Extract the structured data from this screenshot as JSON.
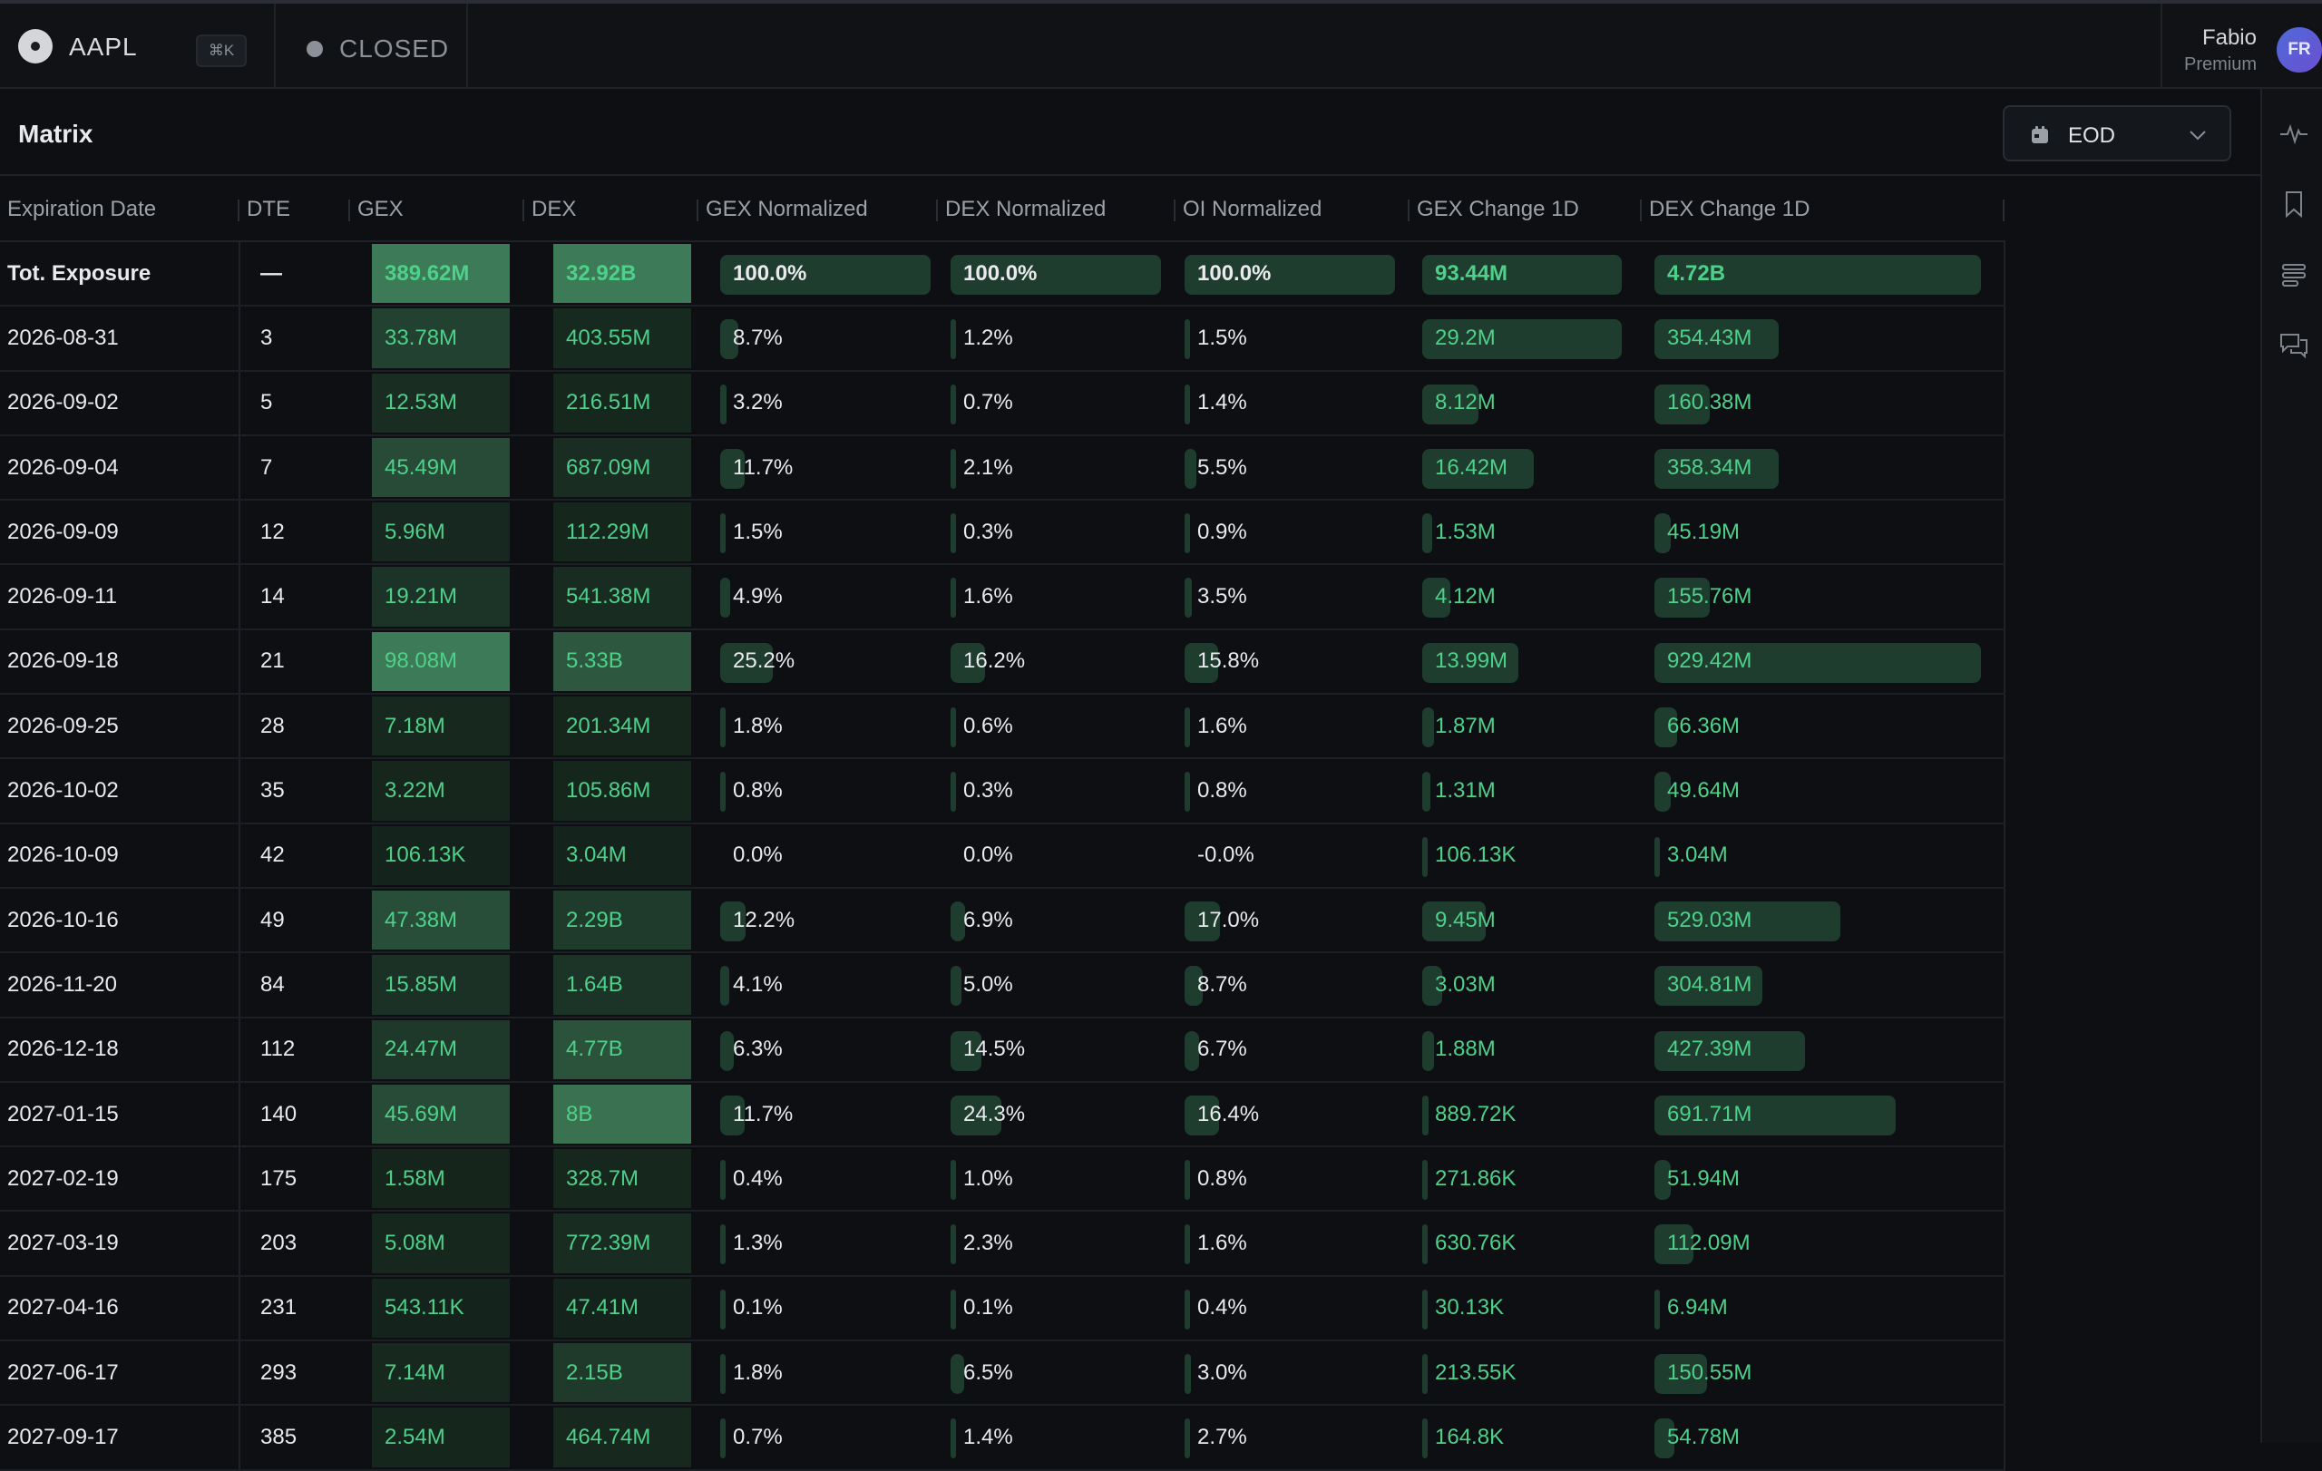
{
  "topbar": {
    "ticker": "AAPL",
    "shortcut": "⌘K",
    "market_status": "CLOSED",
    "user_name": "Fabio",
    "user_plan": "Premium",
    "avatar_initials": "FR"
  },
  "panel": {
    "title": "Matrix",
    "timeframe": "EOD"
  },
  "columns": [
    "Expiration Date",
    "DTE",
    "GEX",
    "DEX",
    "GEX Normalized",
    "DEX Normalized",
    "OI Normalized",
    "GEX Change 1D",
    "DEX Change 1D"
  ],
  "colors": {
    "accent_green": "#4fd08a",
    "heat_dark": "#14231b",
    "heat_bright": "#3d7a57",
    "bar_fill": "#1e3d2e"
  },
  "rows": [
    {
      "date": "Tot. Exposure",
      "dte": "—",
      "gex": "389.62M",
      "dex": "32.92B",
      "gex_n": "100.0%",
      "dex_n": "100.0%",
      "oi_n": "100.0%",
      "gex_c": "93.44M",
      "dex_c": "4.72B",
      "gex_i": 1.0,
      "dex_i": 1.0,
      "gex_nv": 100,
      "dex_nv": 100,
      "oi_nv": 100,
      "gex_cv": 100,
      "dex_cv": 100,
      "total": true
    },
    {
      "date": "2026-08-31",
      "dte": "3",
      "gex": "33.78M",
      "dex": "403.55M",
      "gex_n": "8.7%",
      "dex_n": "1.2%",
      "oi_n": "1.5%",
      "gex_c": "29.2M",
      "dex_c": "354.43M",
      "gex_i": 0.35,
      "dex_i": 0.08,
      "gex_nv": 8.7,
      "dex_nv": 1.2,
      "oi_nv": 1.5,
      "gex_cv": 100,
      "dex_cv": 38
    },
    {
      "date": "2026-09-02",
      "dte": "5",
      "gex": "12.53M",
      "dex": "216.51M",
      "gex_n": "3.2%",
      "dex_n": "0.7%",
      "oi_n": "1.4%",
      "gex_c": "8.12M",
      "dex_c": "160.38M",
      "gex_i": 0.12,
      "dex_i": 0.05,
      "gex_nv": 3.2,
      "dex_nv": 0.7,
      "oi_nv": 1.4,
      "gex_cv": 28,
      "dex_cv": 17
    },
    {
      "date": "2026-09-04",
      "dte": "7",
      "gex": "45.49M",
      "dex": "687.09M",
      "gex_n": "11.7%",
      "dex_n": "2.1%",
      "oi_n": "5.5%",
      "gex_c": "16.42M",
      "dex_c": "358.34M",
      "gex_i": 0.46,
      "dex_i": 0.12,
      "gex_nv": 11.7,
      "dex_nv": 2.1,
      "oi_nv": 5.5,
      "gex_cv": 56,
      "dex_cv": 38
    },
    {
      "date": "2026-09-09",
      "dte": "12",
      "gex": "5.96M",
      "dex": "112.29M",
      "gex_n": "1.5%",
      "dex_n": "0.3%",
      "oi_n": "0.9%",
      "gex_c": "1.53M",
      "dex_c": "45.19M",
      "gex_i": 0.06,
      "dex_i": 0.03,
      "gex_nv": 1.5,
      "dex_nv": 0.3,
      "oi_nv": 0.9,
      "gex_cv": 5,
      "dex_cv": 5
    },
    {
      "date": "2026-09-11",
      "dte": "14",
      "gex": "19.21M",
      "dex": "541.38M",
      "gex_n": "4.9%",
      "dex_n": "1.6%",
      "oi_n": "3.5%",
      "gex_c": "4.12M",
      "dex_c": "155.76M",
      "gex_i": 0.2,
      "dex_i": 0.1,
      "gex_nv": 4.9,
      "dex_nv": 1.6,
      "oi_nv": 3.5,
      "gex_cv": 14,
      "dex_cv": 17
    },
    {
      "date": "2026-09-18",
      "dte": "21",
      "gex": "98.08M",
      "dex": "5.33B",
      "gex_n": "25.2%",
      "dex_n": "16.2%",
      "oi_n": "15.8%",
      "gex_c": "13.99M",
      "dex_c": "929.42M",
      "gex_i": 1.0,
      "dex_i": 0.6,
      "gex_nv": 25.2,
      "dex_nv": 16.2,
      "oi_nv": 15.8,
      "gex_cv": 48,
      "dex_cv": 100
    },
    {
      "date": "2026-09-25",
      "dte": "28",
      "gex": "7.18M",
      "dex": "201.34M",
      "gex_n": "1.8%",
      "dex_n": "0.6%",
      "oi_n": "1.6%",
      "gex_c": "1.87M",
      "dex_c": "66.36M",
      "gex_i": 0.07,
      "dex_i": 0.04,
      "gex_nv": 1.8,
      "dex_nv": 0.6,
      "oi_nv": 1.6,
      "gex_cv": 6,
      "dex_cv": 7
    },
    {
      "date": "2026-10-02",
      "dte": "35",
      "gex": "3.22M",
      "dex": "105.86M",
      "gex_n": "0.8%",
      "dex_n": "0.3%",
      "oi_n": "0.8%",
      "gex_c": "1.31M",
      "dex_c": "49.64M",
      "gex_i": 0.04,
      "dex_i": 0.03,
      "gex_nv": 0.8,
      "dex_nv": 0.3,
      "oi_nv": 0.8,
      "gex_cv": 4,
      "dex_cv": 5
    },
    {
      "date": "2026-10-09",
      "dte": "42",
      "gex": "106.13K",
      "dex": "3.04M",
      "gex_n": "0.0%",
      "dex_n": "0.0%",
      "oi_n": "-0.0%",
      "gex_c": "106.13K",
      "dex_c": "3.04M",
      "gex_i": 0.0,
      "dex_i": 0.0,
      "gex_nv": 0,
      "dex_nv": 0,
      "oi_nv": 0,
      "gex_cv": 0.3,
      "dex_cv": 0.3
    },
    {
      "date": "2026-10-16",
      "dte": "49",
      "gex": "47.38M",
      "dex": "2.29B",
      "gex_n": "12.2%",
      "dex_n": "6.9%",
      "oi_n": "17.0%",
      "gex_c": "9.45M",
      "dex_c": "529.03M",
      "gex_i": 0.48,
      "dex_i": 0.28,
      "gex_nv": 12.2,
      "dex_nv": 6.9,
      "oi_nv": 17.0,
      "gex_cv": 32,
      "dex_cv": 57
    },
    {
      "date": "2026-11-20",
      "dte": "84",
      "gex": "15.85M",
      "dex": "1.64B",
      "gex_n": "4.1%",
      "dex_n": "5.0%",
      "oi_n": "8.7%",
      "gex_c": "3.03M",
      "dex_c": "304.81M",
      "gex_i": 0.16,
      "dex_i": 0.2,
      "gex_nv": 4.1,
      "dex_nv": 5.0,
      "oi_nv": 8.7,
      "gex_cv": 10,
      "dex_cv": 33
    },
    {
      "date": "2026-12-18",
      "dte": "112",
      "gex": "24.47M",
      "dex": "4.77B",
      "gex_n": "6.3%",
      "dex_n": "14.5%",
      "oi_n": "6.7%",
      "gex_c": "1.88M",
      "dex_c": "427.39M",
      "gex_i": 0.25,
      "dex_i": 0.55,
      "gex_nv": 6.3,
      "dex_nv": 14.5,
      "oi_nv": 6.7,
      "gex_cv": 6,
      "dex_cv": 46
    },
    {
      "date": "2027-01-15",
      "dte": "140",
      "gex": "45.69M",
      "dex": "8B",
      "gex_n": "11.7%",
      "dex_n": "24.3%",
      "oi_n": "16.4%",
      "gex_c": "889.72K",
      "dex_c": "691.71M",
      "gex_i": 0.46,
      "dex_i": 0.9,
      "gex_nv": 11.7,
      "dex_nv": 24.3,
      "oi_nv": 16.4,
      "gex_cv": 3,
      "dex_cv": 74
    },
    {
      "date": "2027-02-19",
      "dte": "175",
      "gex": "1.58M",
      "dex": "328.7M",
      "gex_n": "0.4%",
      "dex_n": "1.0%",
      "oi_n": "0.8%",
      "gex_c": "271.86K",
      "dex_c": "51.94M",
      "gex_i": 0.02,
      "dex_i": 0.05,
      "gex_nv": 0.4,
      "dex_nv": 1.0,
      "oi_nv": 0.8,
      "gex_cv": 1,
      "dex_cv": 5
    },
    {
      "date": "2027-03-19",
      "dte": "203",
      "gex": "5.08M",
      "dex": "772.39M",
      "gex_n": "1.3%",
      "dex_n": "2.3%",
      "oi_n": "1.6%",
      "gex_c": "630.76K",
      "dex_c": "112.09M",
      "gex_i": 0.05,
      "dex_i": 0.1,
      "gex_nv": 1.3,
      "dex_nv": 2.3,
      "oi_nv": 1.6,
      "gex_cv": 2,
      "dex_cv": 12
    },
    {
      "date": "2027-04-16",
      "dte": "231",
      "gex": "543.11K",
      "dex": "47.41M",
      "gex_n": "0.1%",
      "dex_n": "0.1%",
      "oi_n": "0.4%",
      "gex_c": "30.13K",
      "dex_c": "6.94M",
      "gex_i": 0.01,
      "dex_i": 0.01,
      "gex_nv": 0.1,
      "dex_nv": 0.1,
      "oi_nv": 0.4,
      "gex_cv": 0.3,
      "dex_cv": 0.7
    },
    {
      "date": "2027-06-17",
      "dte": "293",
      "gex": "7.14M",
      "dex": "2.15B",
      "gex_n": "1.8%",
      "dex_n": "6.5%",
      "oi_n": "3.0%",
      "gex_c": "213.55K",
      "dex_c": "150.55M",
      "gex_i": 0.07,
      "dex_i": 0.27,
      "gex_nv": 1.8,
      "dex_nv": 6.5,
      "oi_nv": 3.0,
      "gex_cv": 1,
      "dex_cv": 16
    },
    {
      "date": "2027-09-17",
      "dte": "385",
      "gex": "2.54M",
      "dex": "464.74M",
      "gex_n": "0.7%",
      "dex_n": "1.4%",
      "oi_n": "2.7%",
      "gex_c": "164.8K",
      "dex_c": "54.78M",
      "gex_i": 0.03,
      "dex_i": 0.07,
      "gex_nv": 0.7,
      "dex_nv": 1.4,
      "oi_nv": 2.7,
      "gex_cv": 1,
      "dex_cv": 6
    }
  ]
}
